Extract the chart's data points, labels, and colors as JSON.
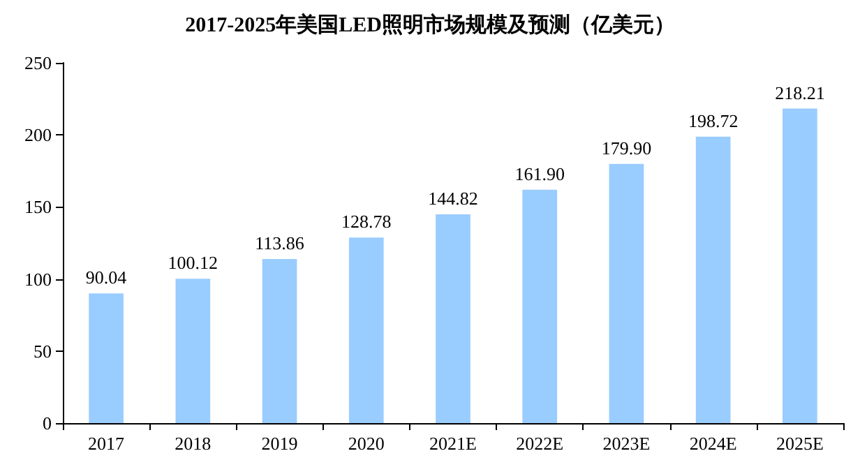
{
  "chart_data": {
    "type": "bar",
    "title": "2017-2025年美国LED照明市场规模及预测（亿美元）",
    "categories": [
      "2017",
      "2018",
      "2019",
      "2020",
      "2021E",
      "2022E",
      "2023E",
      "2024E",
      "2025E"
    ],
    "values": [
      90.04,
      100.12,
      113.86,
      128.78,
      144.82,
      161.9,
      179.9,
      198.72,
      218.21
    ],
    "value_labels": [
      "90.04",
      "100.12",
      "113.86",
      "128.78",
      "144.82",
      "161.90",
      "179.90",
      "198.72",
      "218.21"
    ],
    "color": "#99ccff",
    "ylim": [
      0,
      250
    ],
    "yticks": [
      0,
      50,
      100,
      150,
      200,
      250
    ],
    "grid": false
  }
}
